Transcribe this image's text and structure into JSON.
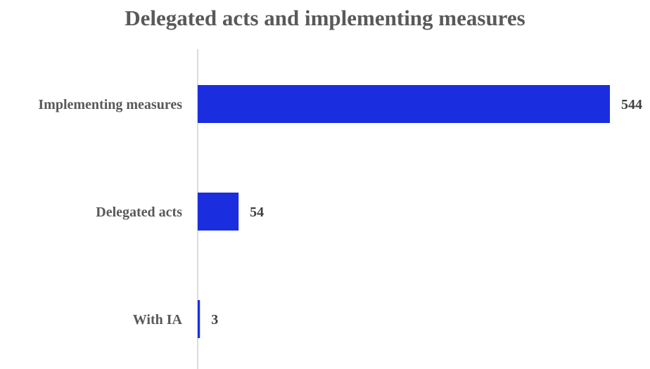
{
  "chart_data": {
    "type": "bar",
    "orientation": "horizontal",
    "title": "Delegated acts and implementing measures",
    "categories": [
      "Implementing measures",
      "Delegated acts",
      "With IA"
    ],
    "values": [
      544,
      54,
      3
    ],
    "data_labels": [
      "544",
      "54",
      "3"
    ],
    "xlim": [
      0,
      544
    ],
    "grid": false,
    "legend": "none",
    "bar_color": "#1a2ee0",
    "axis_color": "#d0d0d0",
    "label_color": "#595959"
  }
}
